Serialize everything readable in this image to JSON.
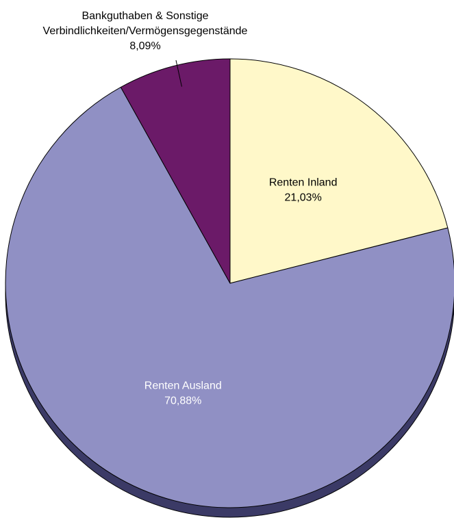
{
  "chart_data": {
    "type": "pie",
    "title": "",
    "start_angle_deg": 0,
    "direction": "clockwise",
    "slices": [
      {
        "label_lines": [
          "Renten Inland"
        ],
        "value": 21.03,
        "value_label": "21,03%",
        "color": "#fff8c9",
        "text_color": "#000000"
      },
      {
        "label_lines": [
          "Renten Ausland"
        ],
        "value": 70.88,
        "value_label": "70,88%",
        "color": "#9090c4",
        "text_color": "#ffffff"
      },
      {
        "label_lines": [
          "Bankguthaben & Sonstige",
          "Verbindlichkeiten/Vermögensgegenstände"
        ],
        "value": 8.09,
        "value_label": "8,09%",
        "color": "#6b1a68",
        "text_color": "#000000"
      }
    ],
    "shadow_color": "#3b3a66",
    "legend": "none"
  }
}
